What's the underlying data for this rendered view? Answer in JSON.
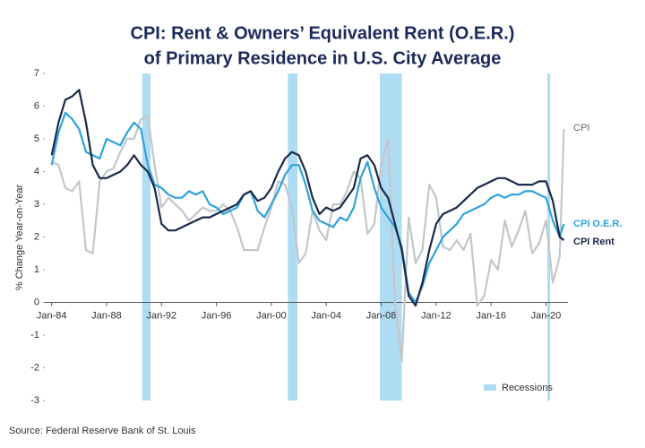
{
  "chart_data": {
    "type": "line",
    "title": [
      "CPI: Rent & Owners’ Equivalent Rent (O.E.R.)",
      "of Primary Residence in U.S. City Average"
    ],
    "y_label": "% Change Year-on-Year",
    "source": "Source: Federal Reserve Bank of St. Louis",
    "x": [
      1984,
      1984.5,
      1985,
      1985.5,
      1986,
      1986.5,
      1987,
      1987.5,
      1988,
      1988.5,
      1989,
      1989.5,
      1990,
      1990.5,
      1991,
      1991.5,
      1992,
      1992.5,
      1993,
      1993.5,
      1994,
      1994.5,
      1995,
      1995.5,
      1996,
      1996.5,
      1997,
      1997.5,
      1998,
      1998.5,
      1999,
      1999.5,
      2000,
      2000.5,
      2001,
      2001.5,
      2002,
      2002.5,
      2003,
      2003.5,
      2004,
      2004.5,
      2005,
      2005.5,
      2006,
      2006.5,
      2007,
      2007.5,
      2008,
      2008.5,
      2009,
      2009.5,
      2010,
      2010.5,
      2011,
      2011.5,
      2012,
      2012.5,
      2013,
      2013.5,
      2014,
      2014.5,
      2015,
      2015.5,
      2016,
      2016.5,
      2017,
      2017.5,
      2018,
      2018.5,
      2019,
      2019.5,
      2020,
      2020.5,
      2021,
      2021.3
    ],
    "series": [
      {
        "name": "CPI",
        "color": "#c3c7cb",
        "values": [
          4.3,
          4.2,
          3.5,
          3.4,
          3.7,
          1.6,
          1.5,
          3.7,
          4.0,
          4.1,
          4.6,
          5.0,
          5.0,
          5.6,
          5.7,
          4.2,
          2.9,
          3.2,
          3.0,
          2.8,
          2.5,
          2.7,
          2.9,
          2.8,
          2.8,
          3.0,
          2.8,
          2.3,
          1.6,
          1.6,
          1.6,
          2.3,
          2.9,
          3.7,
          3.6,
          2.9,
          1.2,
          1.5,
          2.8,
          2.2,
          1.9,
          3.0,
          3.0,
          3.4,
          4.0,
          3.8,
          2.1,
          2.4,
          4.2,
          5.0,
          0.0,
          -1.8,
          2.6,
          1.2,
          1.6,
          3.6,
          3.2,
          1.7,
          1.6,
          1.9,
          1.6,
          2.1,
          -0.1,
          0.2,
          1.3,
          1.0,
          2.5,
          1.7,
          2.2,
          2.8,
          1.5,
          1.8,
          2.5,
          0.6,
          1.4,
          5.3
        ]
      },
      {
        "name": "CPI O.E.R.",
        "color": "#2ea3dc",
        "values": [
          4.2,
          5.2,
          5.8,
          5.6,
          5.3,
          4.6,
          4.5,
          4.4,
          5.0,
          4.9,
          4.8,
          5.2,
          5.5,
          5.3,
          4.2,
          3.6,
          3.5,
          3.3,
          3.2,
          3.2,
          3.4,
          3.3,
          3.4,
          3.0,
          2.9,
          2.7,
          2.8,
          2.9,
          3.3,
          3.4,
          2.8,
          2.6,
          3.0,
          3.4,
          3.9,
          4.2,
          4.2,
          3.6,
          2.8,
          2.5,
          2.4,
          2.3,
          2.6,
          2.5,
          2.9,
          3.8,
          4.3,
          3.5,
          2.9,
          2.6,
          2.3,
          1.7,
          0.3,
          0.0,
          0.5,
          1.2,
          1.6,
          2.0,
          2.2,
          2.4,
          2.7,
          2.8,
          2.9,
          3.0,
          3.2,
          3.3,
          3.2,
          3.3,
          3.3,
          3.4,
          3.4,
          3.3,
          3.2,
          2.5,
          2.0,
          2.4
        ]
      },
      {
        "name": "CPI Rent",
        "color": "#1b2a4a",
        "values": [
          4.5,
          5.5,
          6.2,
          6.3,
          6.5,
          5.5,
          4.2,
          3.8,
          3.8,
          3.9,
          4.0,
          4.2,
          4.5,
          4.2,
          4.0,
          3.5,
          2.4,
          2.2,
          2.2,
          2.3,
          2.4,
          2.5,
          2.6,
          2.6,
          2.7,
          2.8,
          2.9,
          3.0,
          3.3,
          3.4,
          3.1,
          3.2,
          3.5,
          4.0,
          4.4,
          4.6,
          4.5,
          4.0,
          3.2,
          2.7,
          2.9,
          2.8,
          2.9,
          3.2,
          3.5,
          4.4,
          4.5,
          4.2,
          3.5,
          3.2,
          2.4,
          1.6,
          0.2,
          -0.1,
          0.6,
          1.6,
          2.4,
          2.7,
          2.8,
          2.9,
          3.1,
          3.3,
          3.5,
          3.6,
          3.7,
          3.8,
          3.8,
          3.7,
          3.6,
          3.6,
          3.6,
          3.7,
          3.7,
          3.1,
          2.0,
          1.9
        ]
      }
    ],
    "recessions": {
      "name": "Recessions",
      "color": "#aedcf2",
      "spans": [
        [
          1990.6,
          1991.2
        ],
        [
          2001.2,
          2001.9
        ],
        [
          2007.9,
          2009.5
        ],
        [
          2020.1,
          2020.3
        ]
      ]
    },
    "xlim": [
      1983.5,
      2021.6
    ],
    "xticks": [
      {
        "value": 1984,
        "label": "Jan-84"
      },
      {
        "value": 1988,
        "label": "Jan-88"
      },
      {
        "value": 1992,
        "label": "Jan-92"
      },
      {
        "value": 1996,
        "label": "Jan-96"
      },
      {
        "value": 2000,
        "label": "Jan-00"
      },
      {
        "value": 2004,
        "label": "Jan-04"
      },
      {
        "value": 2008,
        "label": "Jan-08"
      },
      {
        "value": 2012,
        "label": "Jan-12"
      },
      {
        "value": 2016,
        "label": "Jan-16"
      },
      {
        "value": 2020,
        "label": "Jan-20"
      }
    ],
    "ylim": [
      -3,
      7
    ],
    "yticks": [
      -3,
      -2,
      -1,
      0,
      1,
      2,
      3,
      4,
      5,
      6,
      7
    ]
  }
}
